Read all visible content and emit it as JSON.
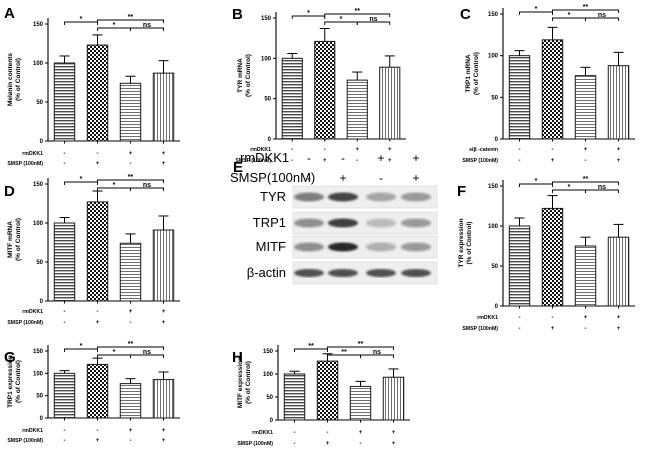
{
  "chart_data": [
    {
      "id": "A",
      "type": "bar",
      "letter": "A",
      "ylabel": [
        "Melanin contents",
        "(% of Control)"
      ],
      "yticks": [
        "0",
        "50",
        "100",
        "150"
      ],
      "ylim": [
        0,
        150
      ],
      "values": [
        100,
        123,
        74,
        87
      ],
      "errors": [
        9,
        13,
        9,
        16
      ],
      "rows": [
        {
          "label": "rmDKK1",
          "signs": [
            "-",
            "-",
            "+",
            "+"
          ]
        },
        {
          "label": "SMSP (100nM)",
          "signs": [
            "-",
            "+",
            "-",
            "+"
          ]
        }
      ],
      "significance": [
        {
          "from": 0,
          "to": 1,
          "label": "*"
        },
        {
          "from": 1,
          "to": 2,
          "label": "*"
        },
        {
          "from": 1,
          "to": 3,
          "label": "**"
        },
        {
          "from": 2,
          "to": 3,
          "label": "ns"
        }
      ]
    },
    {
      "id": "B",
      "type": "bar",
      "letter": "B",
      "ylabel": [
        "TYR mRNA",
        "(% of Control)"
      ],
      "yticks": [
        "0",
        "50",
        "100",
        "150"
      ],
      "ylim": [
        0,
        150
      ],
      "values": [
        100,
        121,
        73,
        89
      ],
      "errors": [
        6,
        16,
        10,
        14
      ],
      "rows": [
        {
          "label": "rmDKK1",
          "signs": [
            "-",
            "-",
            "+",
            "+"
          ]
        },
        {
          "label": "SMSP (100nM)",
          "signs": [
            "-",
            "+",
            "-",
            "+"
          ]
        }
      ],
      "significance": [
        {
          "from": 0,
          "to": 1,
          "label": "*"
        },
        {
          "from": 1,
          "to": 2,
          "label": "*"
        },
        {
          "from": 1,
          "to": 3,
          "label": "**"
        },
        {
          "from": 2,
          "to": 3,
          "label": "ns"
        }
      ]
    },
    {
      "id": "C",
      "type": "bar",
      "letter": "C",
      "ylabel": [
        "TRP1 mRNA",
        "(% of Control)"
      ],
      "yticks": [
        "0",
        "50",
        "100",
        "150"
      ],
      "ylim": [
        0,
        150
      ],
      "values": [
        100,
        119,
        76,
        88
      ],
      "errors": [
        6,
        15,
        10,
        16
      ],
      "rows": [
        {
          "label": "siβ -catenin",
          "signs": [
            "-",
            "-",
            "+",
            "+"
          ]
        },
        {
          "label": "SMSP (100nM)",
          "signs": [
            "-",
            "+",
            "-",
            "+"
          ]
        }
      ],
      "significance": [
        {
          "from": 0,
          "to": 1,
          "label": "*"
        },
        {
          "from": 1,
          "to": 2,
          "label": "*"
        },
        {
          "from": 1,
          "to": 3,
          "label": "**"
        },
        {
          "from": 2,
          "to": 3,
          "label": "ns"
        }
      ]
    },
    {
      "id": "D",
      "type": "bar",
      "letter": "D",
      "ylabel": [
        "MITF mRNA",
        "(% of Control)"
      ],
      "yticks": [
        "0",
        "50",
        "100",
        "150"
      ],
      "ylim": [
        0,
        150
      ],
      "values": [
        100,
        127,
        74,
        91
      ],
      "errors": [
        7,
        14,
        12,
        18
      ],
      "rows": [
        {
          "label": "rmDKK1",
          "signs": [
            "-",
            "-",
            "+",
            "+"
          ]
        },
        {
          "label": "SMSP (100nM)",
          "signs": [
            "-",
            "+",
            "-",
            "+"
          ]
        }
      ],
      "significance": [
        {
          "from": 0,
          "to": 1,
          "label": "*"
        },
        {
          "from": 1,
          "to": 2,
          "label": "*"
        },
        {
          "from": 1,
          "to": 3,
          "label": "**"
        },
        {
          "from": 2,
          "to": 3,
          "label": "ns"
        }
      ]
    },
    {
      "id": "F",
      "type": "bar",
      "letter": "F",
      "ylabel": [
        "TYR expression",
        "(% of Control)"
      ],
      "yticks": [
        "0",
        "50",
        "100",
        "150"
      ],
      "ylim": [
        0,
        150
      ],
      "values": [
        100,
        122,
        75,
        86
      ],
      "errors": [
        10,
        16,
        11,
        16
      ],
      "rows": [
        {
          "label": "rmDKK1",
          "signs": [
            "-",
            "-",
            "+",
            "+"
          ]
        },
        {
          "label": "SMSP (100nM)",
          "signs": [
            "-",
            "+",
            "-",
            "+"
          ]
        }
      ],
      "significance": [
        {
          "from": 0,
          "to": 1,
          "label": "*"
        },
        {
          "from": 1,
          "to": 2,
          "label": "*"
        },
        {
          "from": 1,
          "to": 3,
          "label": "**"
        },
        {
          "from": 2,
          "to": 3,
          "label": "ns"
        }
      ]
    },
    {
      "id": "G",
      "type": "bar",
      "letter": "G",
      "ylabel": [
        "TRP1 expression",
        "(% of Control)"
      ],
      "yticks": [
        "0",
        "50",
        "100",
        "150"
      ],
      "ylim": [
        0,
        150
      ],
      "values": [
        100,
        120,
        77,
        86
      ],
      "errors": [
        6,
        14,
        11,
        17
      ],
      "rows": [
        {
          "label": "rmDKK1",
          "signs": [
            "-",
            "-",
            "+",
            "+"
          ]
        },
        {
          "label": "SMSP (100nM)",
          "signs": [
            "-",
            "+",
            "-",
            "+"
          ]
        }
      ],
      "significance": [
        {
          "from": 0,
          "to": 1,
          "label": "*"
        },
        {
          "from": 1,
          "to": 2,
          "label": "*"
        },
        {
          "from": 1,
          "to": 3,
          "label": "**"
        },
        {
          "from": 2,
          "to": 3,
          "label": "ns"
        }
      ]
    },
    {
      "id": "H",
      "type": "bar",
      "letter": "H",
      "ylabel": [
        "MITF expression",
        "(% of Control)"
      ],
      "yticks": [
        "0",
        "50",
        "100",
        "150"
      ],
      "ylim": [
        0,
        150
      ],
      "values": [
        100,
        128,
        73,
        93
      ],
      "errors": [
        6,
        16,
        11,
        18
      ],
      "rows": [
        {
          "label": "rmDKK1",
          "signs": [
            "-",
            "-",
            "+",
            "+"
          ]
        },
        {
          "label": "SMSP (100nM)",
          "signs": [
            "-",
            "+",
            "-",
            "+"
          ]
        }
      ],
      "significance": [
        {
          "from": 0,
          "to": 1,
          "label": "**"
        },
        {
          "from": 1,
          "to": 2,
          "label": "**"
        },
        {
          "from": 1,
          "to": 3,
          "label": "**"
        },
        {
          "from": 2,
          "to": 3,
          "label": "ns"
        }
      ]
    }
  ],
  "blot": {
    "letter": "E",
    "treatments": [
      {
        "label": "rmDKK1",
        "signs": [
          "-",
          "-",
          "+",
          "+"
        ]
      },
      {
        "label": "SMSP(100nM)",
        "signs": [
          "-",
          "+",
          "-",
          "+"
        ]
      }
    ],
    "proteins": [
      "TYR",
      "TRP1",
      "MITF",
      "β-actin"
    ]
  },
  "colors": {
    "bar_stroke": "#1a1a1a",
    "bar_fill_bg": "#ffffff",
    "pattern_ink": "#2b2b2b",
    "axis": "#000000",
    "blot_bg": "#f4f4f4",
    "band": "#222222"
  }
}
